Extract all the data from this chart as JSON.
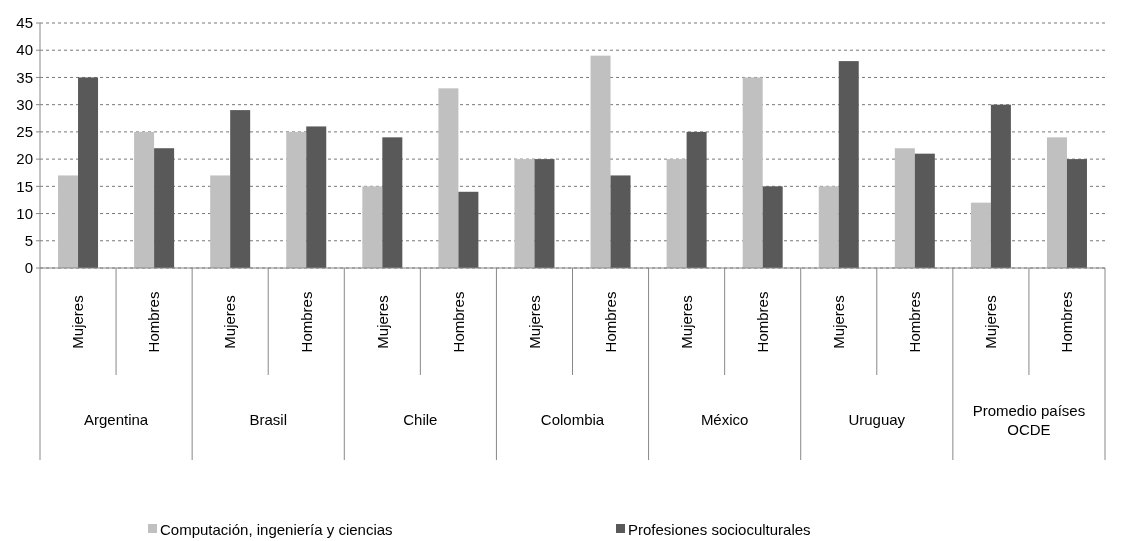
{
  "chart_data": {
    "type": "bar",
    "categories": [
      "Mujeres",
      "Hombres",
      "Mujeres",
      "Hombres",
      "Mujeres",
      "Hombres",
      "Mujeres",
      "Hombres",
      "Mujeres",
      "Hombres",
      "Mujeres",
      "Hombres",
      "Mujeres",
      "Hombres"
    ],
    "annotations": [
      "Argentina",
      "Brasil",
      "Chile",
      "Colombia",
      "México",
      "Uruguay",
      "Promedio países OCDE"
    ],
    "series": [
      {
        "name": "Computación, ingeniería y ciencias",
        "color": "#c0c0c0",
        "values": [
          17,
          25,
          17,
          25,
          15,
          33,
          20,
          39,
          20,
          35,
          15,
          22,
          12,
          24
        ]
      },
      {
        "name": "Profesiones socioculturales",
        "color": "#595959",
        "values": [
          35,
          22,
          29,
          26,
          24,
          14,
          20,
          17,
          25,
          15,
          38,
          21,
          30,
          20
        ]
      }
    ],
    "ylim": [
      0,
      45
    ],
    "yticks": [
      0,
      5,
      10,
      15,
      20,
      25,
      30,
      35,
      40,
      45
    ],
    "grid": "y",
    "legend": "bottom"
  }
}
